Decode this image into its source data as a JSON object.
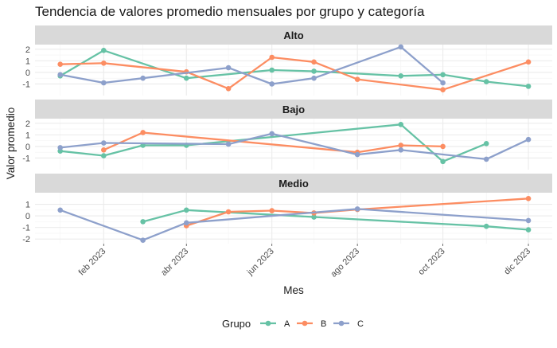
{
  "chart_data": {
    "type": "line",
    "title": "Tendencia de valores promedio mensuales por grupo y categoría",
    "xlabel": "Mes",
    "ylabel": "Valor promedio",
    "legend": {
      "title": "Grupo",
      "position": "bottom"
    },
    "x_ticks": [
      "feb 2023",
      "abr 2023",
      "jun 2023",
      "ago 2023",
      "oct 2023",
      "dic 2023"
    ],
    "x_range": [
      "2022-12-14",
      "2023-12-18"
    ],
    "grid": true,
    "colors": {
      "A": "#66c2a5",
      "B": "#fc8d62",
      "C": "#8da0cb"
    },
    "facets": [
      {
        "name": "Alto",
        "ylim": [
          -2.0,
          2.4
        ],
        "y_ticks": [
          -1,
          0,
          1,
          2
        ],
        "series": [
          {
            "name": "A",
            "points": [
              [
                "2023-01-01",
                -0.3
              ],
              [
                "2023-02-01",
                1.9
              ],
              [
                "2023-04-01",
                -0.5
              ],
              [
                "2023-06-01",
                0.2
              ],
              [
                "2023-07-01",
                0.1
              ],
              [
                "2023-09-01",
                -0.3
              ],
              [
                "2023-10-01",
                -0.2
              ],
              [
                "2023-11-01",
                -0.8
              ],
              [
                "2023-12-01",
                -1.2
              ]
            ]
          },
          {
            "name": "B",
            "points": [
              [
                "2023-01-01",
                0.7
              ],
              [
                "2023-02-01",
                0.8
              ],
              [
                "2023-04-01",
                0.05
              ],
              [
                "2023-05-01",
                -1.4
              ],
              [
                "2023-06-01",
                1.3
              ],
              [
                "2023-07-01",
                0.9
              ],
              [
                "2023-08-01",
                -0.6
              ],
              [
                "2023-10-01",
                -1.5
              ],
              [
                "2023-12-01",
                0.9
              ]
            ]
          },
          {
            "name": "C",
            "points": [
              [
                "2023-01-01",
                -0.2
              ],
              [
                "2023-02-01",
                -0.9
              ],
              [
                "2023-03-01",
                -0.5
              ],
              [
                "2023-05-01",
                0.4
              ],
              [
                "2023-06-01",
                -1.0
              ],
              [
                "2023-07-01",
                -0.5
              ],
              [
                "2023-09-01",
                2.2
              ],
              [
                "2023-10-01",
                -0.9
              ]
            ]
          }
        ]
      },
      {
        "name": "Bajo",
        "ylim": [
          -2.0,
          2.4
        ],
        "y_ticks": [
          -1,
          0,
          1,
          2
        ],
        "series": [
          {
            "name": "A",
            "points": [
              [
                "2023-01-01",
                -0.4
              ],
              [
                "2023-02-01",
                -0.8
              ],
              [
                "2023-03-01",
                0.1
              ],
              [
                "2023-04-01",
                0.1
              ],
              [
                "2023-09-01",
                1.9
              ],
              [
                "2023-10-01",
                -1.3
              ],
              [
                "2023-11-01",
                0.25
              ]
            ]
          },
          {
            "name": "B",
            "points": [
              [
                "2023-02-01",
                -0.3
              ],
              [
                "2023-03-01",
                1.2
              ],
              [
                "2023-08-01",
                -0.5
              ],
              [
                "2023-09-01",
                0.1
              ],
              [
                "2023-10-01",
                0.0
              ]
            ]
          },
          {
            "name": "C",
            "points": [
              [
                "2023-01-01",
                -0.1
              ],
              [
                "2023-02-01",
                0.3
              ],
              [
                "2023-05-01",
                0.2
              ],
              [
                "2023-06-01",
                1.1
              ],
              [
                "2023-08-01",
                -0.7
              ],
              [
                "2023-09-01",
                -0.3
              ],
              [
                "2023-11-01",
                -1.1
              ],
              [
                "2023-12-01",
                0.6
              ]
            ]
          }
        ]
      },
      {
        "name": "Medio",
        "ylim": [
          -2.4,
          2.0
        ],
        "y_ticks": [
          -2,
          -1,
          0,
          1
        ],
        "series": [
          {
            "name": "A",
            "points": [
              [
                "2023-03-01",
                -0.5
              ],
              [
                "2023-04-01",
                0.5
              ],
              [
                "2023-07-01",
                -0.1
              ],
              [
                "2023-11-01",
                -0.9
              ],
              [
                "2023-12-01",
                -1.2
              ]
            ]
          },
          {
            "name": "B",
            "points": [
              [
                "2023-04-01",
                -0.85
              ],
              [
                "2023-05-01",
                0.35
              ],
              [
                "2023-06-01",
                0.45
              ],
              [
                "2023-07-01",
                0.25
              ],
              [
                "2023-08-01",
                0.55
              ],
              [
                "2023-12-01",
                1.5
              ]
            ]
          },
          {
            "name": "C",
            "points": [
              [
                "2023-01-01",
                0.5
              ],
              [
                "2023-03-01",
                -2.1
              ],
              [
                "2023-04-01",
                -0.6
              ],
              [
                "2023-08-01",
                0.6
              ],
              [
                "2023-12-01",
                -0.4
              ]
            ]
          }
        ]
      }
    ]
  }
}
